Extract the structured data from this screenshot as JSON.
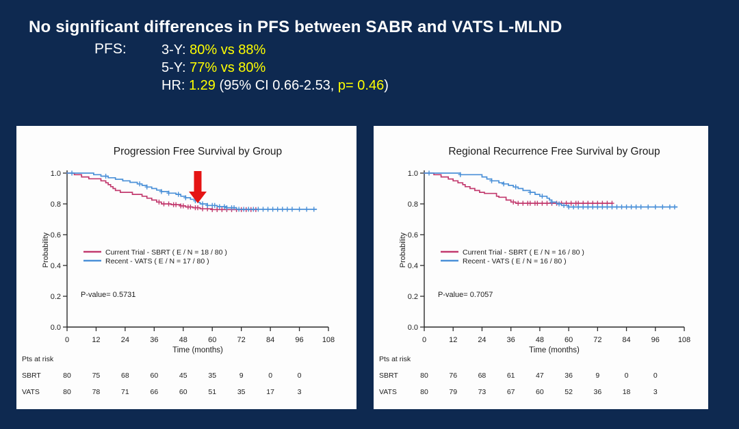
{
  "slide": {
    "title": "No significant differences in PFS between SABR and VATS L-MLND",
    "pfs_label": "PFS:",
    "stat_lines": [
      {
        "segments": [
          {
            "text": "3-Y: "
          },
          {
            "text": "80% vs 88%",
            "highlight": true
          }
        ]
      },
      {
        "segments": [
          {
            "text": "5-Y: "
          },
          {
            "text": "77% vs 80%",
            "highlight": true
          }
        ]
      },
      {
        "segments": [
          {
            "text": "HR: "
          },
          {
            "text": "1.29",
            "highlight": true
          },
          {
            "text": " (95% CI 0.66-2.53, "
          },
          {
            "text": "p= 0.46",
            "highlight": true
          },
          {
            "text": ")"
          }
        ]
      }
    ]
  },
  "colors": {
    "background": "#0e2950",
    "panel": "#fdfdfd",
    "body_text": "#ffffff",
    "highlight": "#ffff00",
    "sbrt": "#c23a6e",
    "vats": "#4a90d8",
    "arrow": "#e51414",
    "chart_text": "#1c1c1c",
    "axis": "#2a2a2a"
  },
  "chart_data": [
    {
      "type": "line",
      "subtype": "kaplan-meier-step",
      "title": "Progression Free Survival by Group",
      "xlabel": "Time (months)",
      "ylabel": "Probability",
      "xlim": [
        0,
        108
      ],
      "ylim": [
        0.0,
        1.0
      ],
      "xticks": [
        0,
        12,
        24,
        36,
        48,
        60,
        72,
        84,
        96,
        108
      ],
      "ytick_labels": [
        "0.0",
        "0.2",
        "0.4",
        "0.6",
        "0.8",
        "1.0"
      ],
      "grid": false,
      "legend_position": "center-left",
      "pvalue_label": "P-value= 0.5731",
      "series": [
        {
          "name": "Current Trial - SBRT  ( E / N = 18 / 80 )",
          "color": "#c23a6e",
          "steps": [
            [
              0,
              1.0
            ],
            [
              3,
              0.99
            ],
            [
              6,
              0.975
            ],
            [
              9,
              0.963
            ],
            [
              14,
              0.95
            ],
            [
              16,
              0.937
            ],
            [
              17,
              0.925
            ],
            [
              18,
              0.912
            ],
            [
              19,
              0.9
            ],
            [
              20,
              0.887
            ],
            [
              22,
              0.875
            ],
            [
              27,
              0.862
            ],
            [
              31,
              0.85
            ],
            [
              33,
              0.837
            ],
            [
              35,
              0.825
            ],
            [
              37,
              0.812
            ],
            [
              39,
              0.8
            ],
            [
              43,
              0.795
            ],
            [
              47,
              0.787
            ],
            [
              49,
              0.78
            ],
            [
              52,
              0.775
            ],
            [
              55,
              0.768
            ],
            [
              60,
              0.763
            ],
            [
              78,
              0.763
            ]
          ],
          "censors": [
            38,
            40,
            42,
            44,
            45,
            47,
            48,
            50,
            51,
            53,
            54,
            56,
            58,
            60,
            62,
            64,
            66,
            68,
            70,
            72,
            74,
            76,
            78
          ]
        },
        {
          "name": "Recent - VATS  ( E / N = 17 / 80 )",
          "color": "#4a90d8",
          "steps": [
            [
              0,
              1.0
            ],
            [
              11,
              0.99
            ],
            [
              14,
              0.98
            ],
            [
              17,
              0.97
            ],
            [
              20,
              0.96
            ],
            [
              23,
              0.95
            ],
            [
              26,
              0.94
            ],
            [
              29,
              0.93
            ],
            [
              31,
              0.92
            ],
            [
              33,
              0.91
            ],
            [
              35,
              0.9
            ],
            [
              37,
              0.89
            ],
            [
              39,
              0.88
            ],
            [
              42,
              0.87
            ],
            [
              45,
              0.862
            ],
            [
              47,
              0.85
            ],
            [
              49,
              0.84
            ],
            [
              51,
              0.83
            ],
            [
              53,
              0.82
            ],
            [
              54,
              0.81
            ],
            [
              55,
              0.8
            ],
            [
              58,
              0.79
            ],
            [
              62,
              0.782
            ],
            [
              66,
              0.775
            ],
            [
              70,
              0.765
            ],
            [
              103,
              0.765
            ]
          ],
          "censors": [
            2,
            16,
            30,
            33,
            39,
            42,
            46,
            49,
            53,
            56,
            58,
            60,
            61,
            63,
            65,
            66,
            68,
            69,
            71,
            73,
            75,
            77,
            79,
            81,
            83,
            85,
            87,
            89,
            91,
            93,
            96,
            99,
            102
          ]
        }
      ],
      "risk_table": {
        "title": "Pts at risk",
        "time_points": [
          0,
          12,
          24,
          36,
          48,
          60,
          72,
          84,
          96
        ],
        "rows": [
          {
            "label": "SBRT",
            "values": [
              "80",
              "75",
              "68",
              "60",
              "45",
              "35",
              "9",
              "0",
              "0"
            ]
          },
          {
            "label": "VATS",
            "values": [
              "80",
              "78",
              "71",
              "66",
              "60",
              "51",
              "35",
              "17",
              "3"
            ]
          }
        ]
      },
      "annotation_arrow": {
        "month": 54,
        "color": "#e51414"
      }
    },
    {
      "type": "line",
      "subtype": "kaplan-meier-step",
      "title": "Regional Recurrence Free Survival by Group",
      "xlabel": "Time (months)",
      "ylabel": "Probability",
      "xlim": [
        0,
        108
      ],
      "ylim": [
        0.0,
        1.0
      ],
      "xticks": [
        0,
        12,
        24,
        36,
        48,
        60,
        72,
        84,
        96,
        108
      ],
      "ytick_labels": [
        "0.0",
        "0.2",
        "0.4",
        "0.6",
        "0.8",
        "1.0"
      ],
      "grid": false,
      "legend_position": "center-left",
      "pvalue_label": "P-value= 0.7057",
      "series": [
        {
          "name": "Current Trial - SBRT  ( E / N = 16 / 80 )",
          "color": "#c23a6e",
          "steps": [
            [
              0,
              1.0
            ],
            [
              4,
              0.99
            ],
            [
              7,
              0.975
            ],
            [
              10,
              0.962
            ],
            [
              12,
              0.95
            ],
            [
              14,
              0.937
            ],
            [
              16,
              0.925
            ],
            [
              17,
              0.912
            ],
            [
              19,
              0.9
            ],
            [
              21,
              0.887
            ],
            [
              23,
              0.875
            ],
            [
              25,
              0.868
            ],
            [
              30,
              0.85
            ],
            [
              31,
              0.843
            ],
            [
              34,
              0.825
            ],
            [
              36,
              0.812
            ],
            [
              38,
              0.804
            ],
            [
              78,
              0.804
            ]
          ],
          "censors": [
            37,
            39,
            41,
            43,
            44,
            46,
            47,
            49,
            51,
            53,
            55,
            57,
            59,
            61,
            63,
            64,
            66,
            68,
            70,
            72,
            74,
            76,
            78
          ]
        },
        {
          "name": "Recent - VATS  ( E / N = 16 / 80 )",
          "color": "#4a90d8",
          "steps": [
            [
              0,
              1.0
            ],
            [
              15,
              0.99
            ],
            [
              24,
              0.975
            ],
            [
              26,
              0.962
            ],
            [
              28,
              0.95
            ],
            [
              31,
              0.937
            ],
            [
              33,
              0.93
            ],
            [
              35,
              0.92
            ],
            [
              37,
              0.91
            ],
            [
              39,
              0.9
            ],
            [
              41,
              0.887
            ],
            [
              44,
              0.875
            ],
            [
              46,
              0.862
            ],
            [
              48,
              0.85
            ],
            [
              51,
              0.837
            ],
            [
              52,
              0.825
            ],
            [
              53,
              0.812
            ],
            [
              55,
              0.8
            ],
            [
              57,
              0.79
            ],
            [
              60,
              0.78
            ],
            [
              105,
              0.78
            ]
          ],
          "censors": [
            2,
            15,
            28,
            33,
            38,
            44,
            49,
            53,
            56,
            58,
            60,
            62,
            64,
            66,
            68,
            70,
            72,
            74,
            76,
            78,
            80,
            82,
            84,
            86,
            88,
            90,
            93,
            96,
            99,
            102,
            104
          ]
        }
      ],
      "risk_table": {
        "title": "Pts at risk",
        "time_points": [
          0,
          12,
          24,
          36,
          48,
          60,
          72,
          84,
          96
        ],
        "rows": [
          {
            "label": "SBRT",
            "values": [
              "80",
              "76",
              "68",
              "61",
              "47",
              "36",
              "9",
              "0",
              "0"
            ]
          },
          {
            "label": "VATS",
            "values": [
              "80",
              "79",
              "73",
              "67",
              "60",
              "52",
              "36",
              "18",
              "3"
            ]
          }
        ]
      }
    }
  ]
}
